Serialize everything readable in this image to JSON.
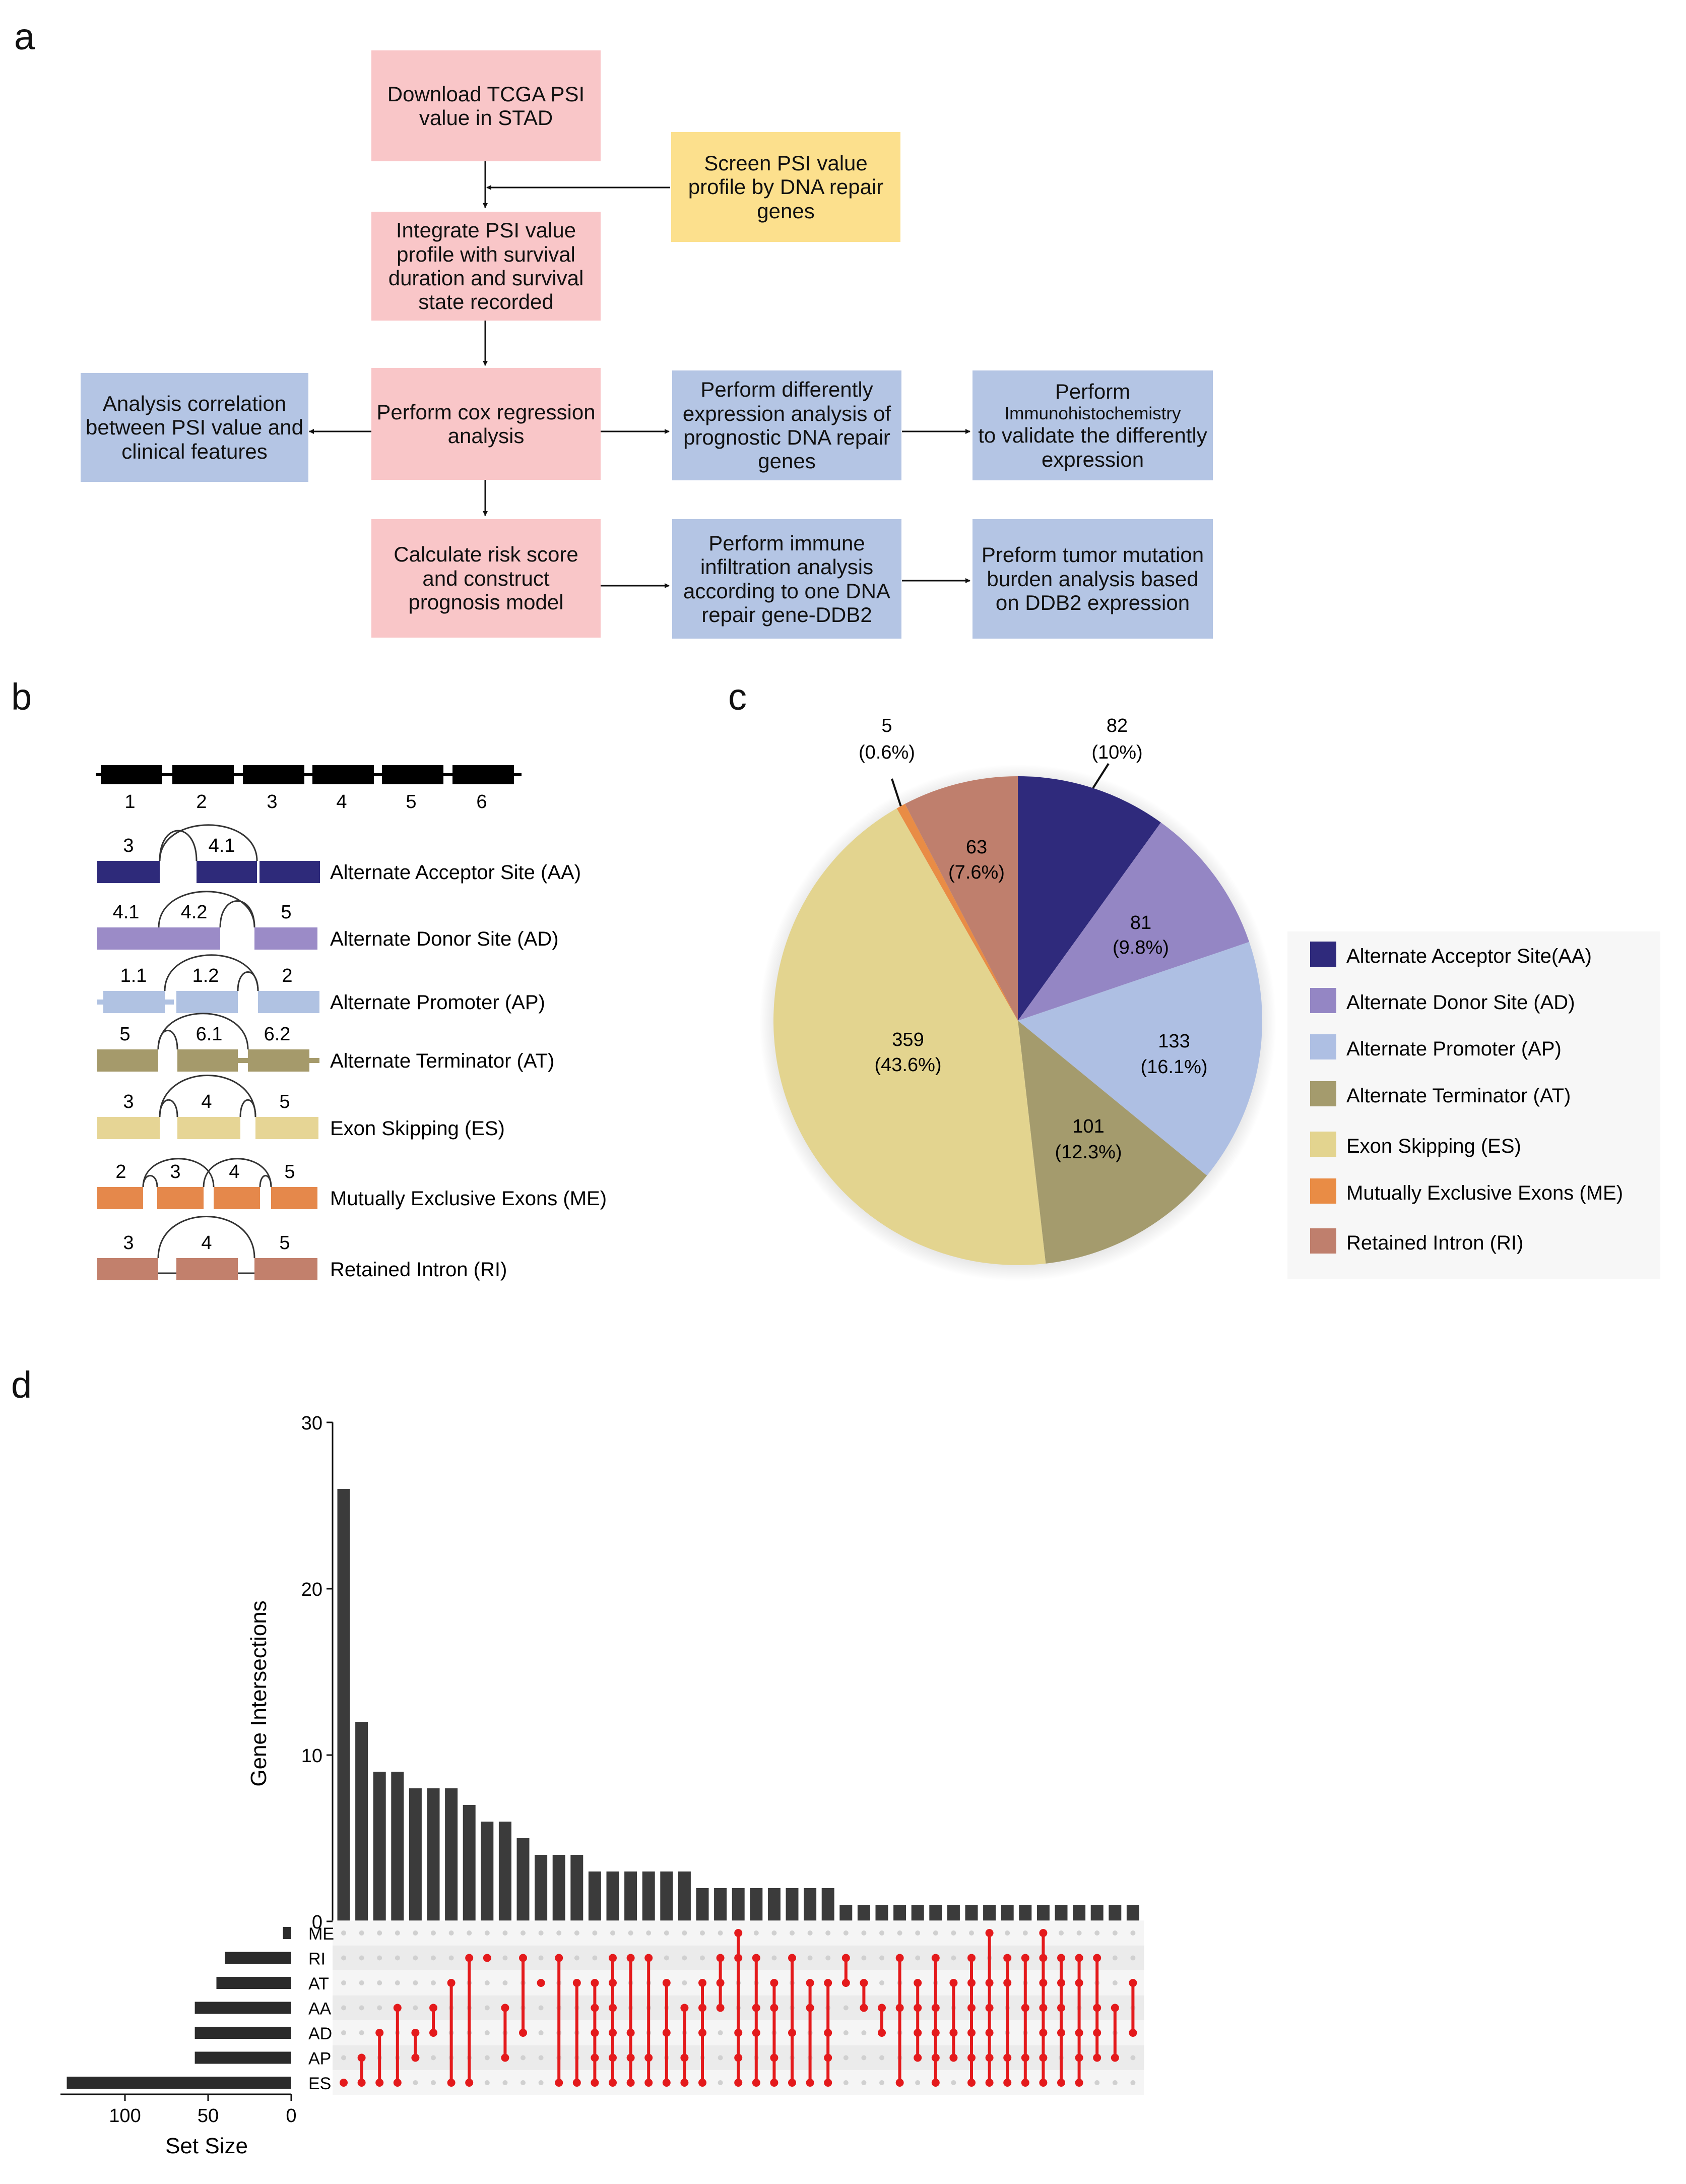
{
  "panel_labels": {
    "a": "a",
    "b": "b",
    "c": "c",
    "d": "d"
  },
  "flowchart": {
    "download": "Download TCGA PSI value in STAD",
    "screen": "Screen PSI value profile by DNA repair genes",
    "integrate": "Integrate PSI value profile with survival duration and survival state recorded",
    "cox": "Perform cox regression analysis",
    "correlation": "Analysis correlation between PSI value and clinical features",
    "diff_expr": "Perform  differently expression analysis of prognostic DNA repair genes",
    "ihc_line1": "Perform",
    "ihc_line2": "Immunohistochemistry",
    "ihc_line3": "to validate the differently expression",
    "risk": "Calculate risk score and construct prognosis model",
    "immune": "Perform immune infiltration analysis according to one DNA repair gene-DDB2",
    "tmb": "Preform tumor mutation burden analysis based on DDB2 expression"
  },
  "splicing_types": {
    "exon_numbers": [
      "1",
      "2",
      "3",
      "4",
      "5",
      "6"
    ],
    "rows": [
      {
        "label": "Alternate Acceptor Site (AA)",
        "nums": [
          "3",
          "4.1"
        ],
        "color": "#2e2a7a"
      },
      {
        "label": "Alternate Donor Site (AD)",
        "nums": [
          "4.1",
          "4.2",
          "5"
        ],
        "color": "#9b8bc7"
      },
      {
        "label": "Alternate Promoter (AP)",
        "nums": [
          "1.1",
          "1.2",
          "2"
        ],
        "color": "#b0c2e2"
      },
      {
        "label": "Alternate Terminator (AT)",
        "nums": [
          "5",
          "6.1",
          "6.2"
        ],
        "color": "#a59a6b"
      },
      {
        "label": "Exon Skipping (ES)",
        "nums": [
          "3",
          "4",
          "5"
        ],
        "color": "#e6d595"
      },
      {
        "label": "Mutually Exclusive Exons (ME)",
        "nums": [
          "2",
          "3",
          "4",
          "5"
        ],
        "color": "#e5884b"
      },
      {
        "label": "Retained Intron (RI)",
        "nums": [
          "3",
          "4",
          "5"
        ],
        "color": "#c2806c"
      }
    ]
  },
  "pie": {
    "chart_data": {
      "type": "pie",
      "slices": [
        {
          "name": "AA",
          "value": 82,
          "pct": "(10%)",
          "value_label": "82",
          "color": "#2f2a7c"
        },
        {
          "name": "AD",
          "value": 81,
          "pct": "(9.8%)",
          "value_label": "81",
          "color": "#9486c4"
        },
        {
          "name": "AP",
          "value": 133,
          "pct": "(16.1%)",
          "value_label": "133",
          "color": "#aebfe3"
        },
        {
          "name": "AT",
          "value": 101,
          "pct": "(12.3%)",
          "value_label": "101",
          "color": "#a49b6d"
        },
        {
          "name": "ES",
          "value": 359,
          "pct": "(43.6%)",
          "value_label": "359",
          "color": "#e3d48f"
        },
        {
          "name": "ME",
          "value": 5,
          "pct": "(0.6%)",
          "value_label": "5",
          "color": "#e98c45"
        },
        {
          "name": "RI",
          "value": 63,
          "pct": "(7.6%)",
          "value_label": "63",
          "color": "#bf7f6d"
        }
      ],
      "legend": [
        {
          "label": "Alternate Acceptor Site(AA)",
          "color": "#2f2a7c"
        },
        {
          "label": "Alternate Donor Site (AD)",
          "color": "#9486c4"
        },
        {
          "label": "Alternate Promoter (AP)",
          "color": "#aebfe3"
        },
        {
          "label": "Alternate Terminator (AT)",
          "color": "#a49b6d"
        },
        {
          "label": "Exon Skipping (ES)",
          "color": "#e3d48f"
        },
        {
          "label": "Mutually Exclusive Exons (ME)",
          "color": "#e98c45"
        },
        {
          "label": "Retained Intron (RI)",
          "color": "#bf7f6d"
        }
      ]
    }
  },
  "upset": {
    "chart_data": {
      "type": "bar",
      "title": "",
      "ylabel": "Gene Intersections",
      "ylim": [
        0,
        30
      ],
      "yticks": [
        "0",
        "10",
        "20",
        "30"
      ],
      "values": [
        26,
        12,
        9,
        9,
        8,
        8,
        8,
        7,
        6,
        6,
        5,
        4,
        4,
        4,
        3,
        3,
        3,
        3,
        3,
        3,
        2,
        2,
        2,
        2,
        2,
        2,
        2,
        2,
        1,
        1,
        1,
        1,
        1,
        1,
        1,
        1,
        1,
        1,
        1,
        1,
        1,
        1,
        1,
        1,
        1
      ],
      "sets": [
        "ME",
        "RI",
        "AT",
        "AA",
        "AD",
        "AP",
        "ES"
      ],
      "set_sizes": [
        5,
        40,
        45,
        58,
        58,
        58,
        135
      ],
      "set_size_label": "Set Size",
      "set_size_ticks": [
        "100",
        "50",
        "0"
      ],
      "matrix": [
        [
          6
        ],
        [
          5,
          6
        ],
        [
          4,
          6
        ],
        [
          3,
          6
        ],
        [
          4,
          5
        ],
        [
          3,
          4
        ],
        [
          2,
          6
        ],
        [
          1,
          6
        ],
        [
          1
        ],
        [
          3,
          5
        ],
        [
          1,
          4
        ],
        [
          2
        ],
        [
          1,
          6
        ],
        [
          2,
          6
        ],
        [
          2,
          3,
          4,
          5,
          6
        ],
        [
          1,
          2,
          3,
          4,
          5,
          6
        ],
        [
          1,
          4,
          5,
          6
        ],
        [
          1,
          5,
          6
        ],
        [
          2,
          4,
          6
        ],
        [
          3,
          5,
          6
        ],
        [
          2,
          3,
          4,
          6
        ],
        [
          1,
          2,
          3
        ],
        [
          0,
          1,
          4,
          5,
          6
        ],
        [
          1,
          3,
          4,
          6
        ],
        [
          2,
          3,
          5,
          6
        ],
        [
          1,
          4,
          6
        ],
        [
          2,
          3,
          6
        ],
        [
          2,
          4,
          5,
          6
        ],
        [
          1,
          2
        ],
        [
          2,
          3
        ],
        [
          3,
          4
        ],
        [
          1,
          3,
          6
        ],
        [
          2,
          3,
          4,
          5
        ],
        [
          1,
          3,
          4,
          5,
          6
        ],
        [
          2,
          4,
          5
        ],
        [
          1,
          2,
          3,
          4,
          5,
          6
        ],
        [
          0,
          2,
          3,
          4,
          5,
          6
        ],
        [
          1,
          2,
          5,
          6
        ],
        [
          1,
          3,
          5,
          6
        ],
        [
          0,
          1,
          2,
          3,
          4,
          5,
          6
        ],
        [
          1,
          2,
          3,
          4,
          6
        ],
        [
          1,
          2,
          4,
          5,
          6
        ],
        [
          1,
          3,
          4,
          5
        ],
        [
          3,
          5
        ],
        [
          2,
          4
        ]
      ],
      "bar_color": "#3b3b3b",
      "dot_color": "#e41a1c"
    }
  }
}
